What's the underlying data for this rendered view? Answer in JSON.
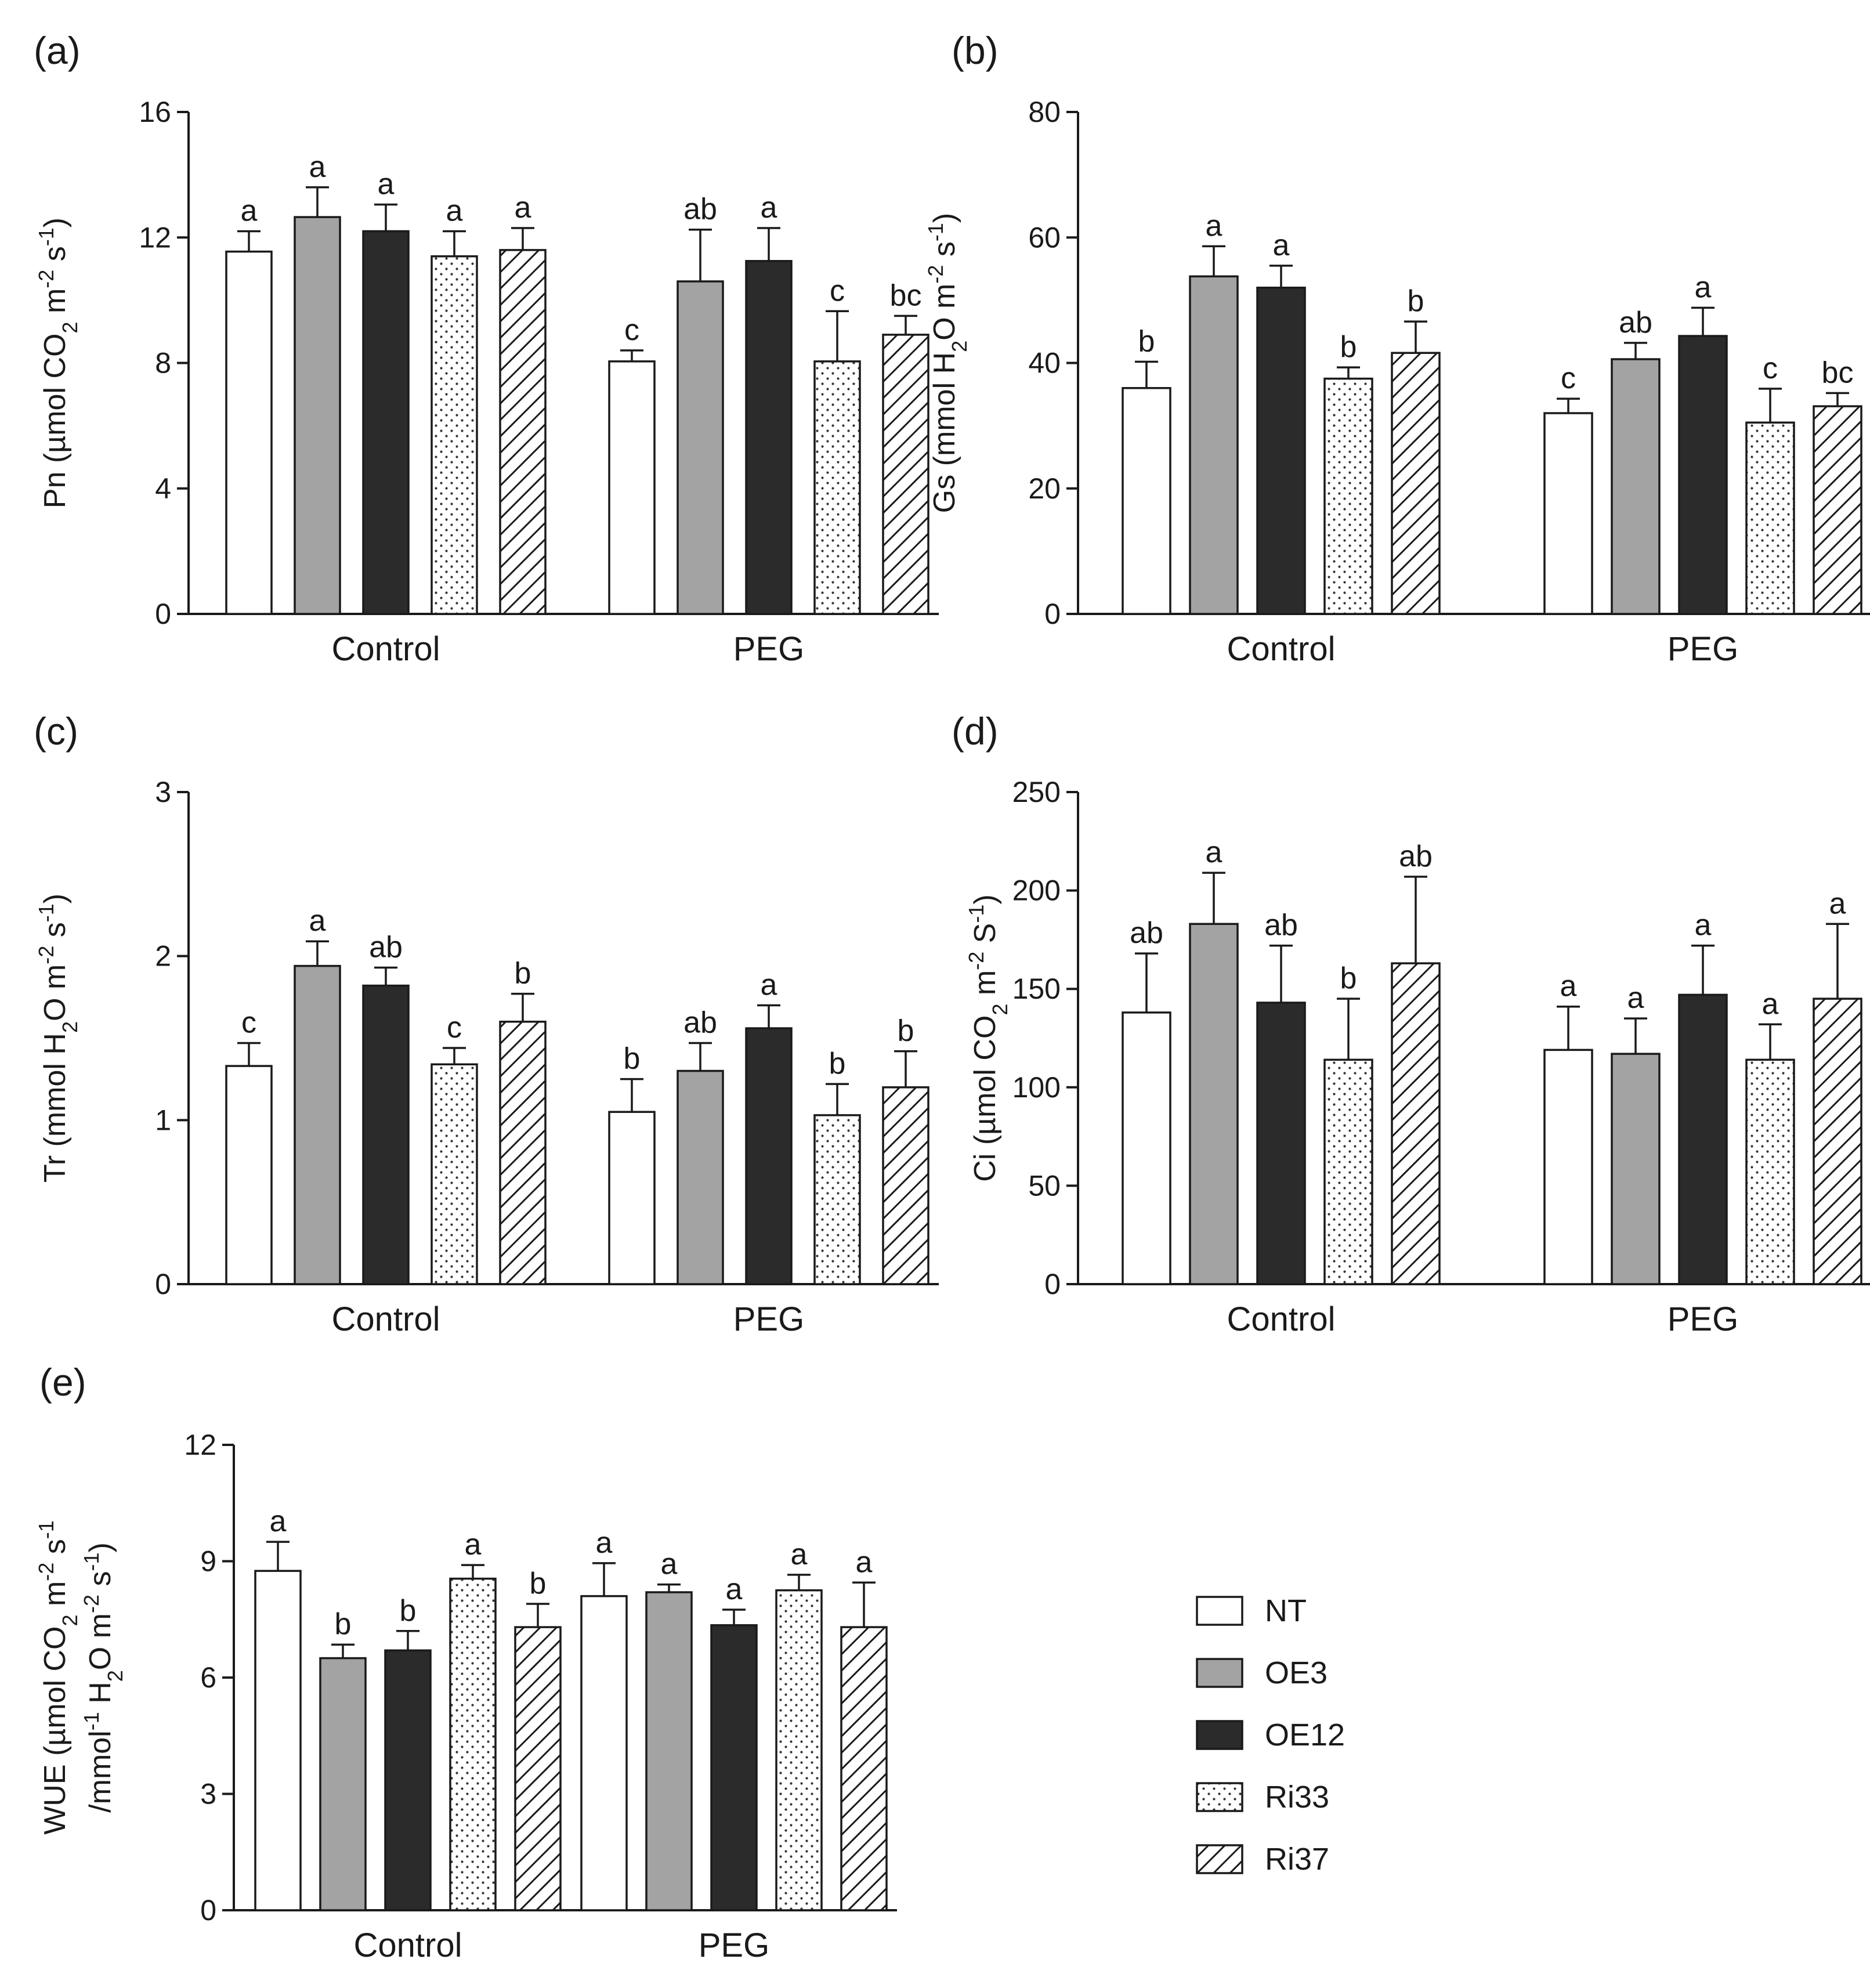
{
  "chart_data": [
    {
      "panel": "(a)",
      "type": "bar",
      "categories": [
        "Control",
        "PEG"
      ],
      "series": [
        {
          "name": "NT",
          "values": [
            11.55,
            8.05
          ],
          "errors": [
            0.65,
            0.35
          ],
          "letters": [
            "a",
            "c"
          ]
        },
        {
          "name": "OE3",
          "values": [
            12.65,
            10.6
          ],
          "errors": [
            0.95,
            1.65
          ],
          "letters": [
            "a",
            "ab"
          ]
        },
        {
          "name": "OE12",
          "values": [
            12.2,
            11.25
          ],
          "errors": [
            0.85,
            1.05
          ],
          "letters": [
            "a",
            "a"
          ]
        },
        {
          "name": "Ri33",
          "values": [
            11.4,
            8.05
          ],
          "errors": [
            0.8,
            1.6
          ],
          "letters": [
            "a",
            "c"
          ]
        },
        {
          "name": "Ri37",
          "values": [
            11.6,
            8.9
          ],
          "errors": [
            0.7,
            0.6
          ],
          "letters": [
            "a",
            "bc"
          ]
        }
      ],
      "ylim": [
        0,
        16
      ],
      "yticks": [
        0,
        4,
        8,
        12,
        16
      ],
      "ytick_labels": [
        "0",
        "4",
        "8",
        "12",
        "16"
      ],
      "ylabel": {
        "main": "Pn (µmol CO",
        "sub": "2",
        "rest": " m",
        "sup1": "-2",
        "mid": " s",
        "sup2": "-1",
        "end": ")"
      }
    },
    {
      "panel": "(b)",
      "type": "bar",
      "categories": [
        "Control",
        "PEG"
      ],
      "series": [
        {
          "name": "NT",
          "values": [
            36,
            32
          ],
          "errors": [
            4.2,
            2.3
          ],
          "letters": [
            "b",
            "c"
          ]
        },
        {
          "name": "OE3",
          "values": [
            53.8,
            40.6
          ],
          "errors": [
            4.8,
            2.6
          ],
          "letters": [
            "a",
            "ab"
          ]
        },
        {
          "name": "OE12",
          "values": [
            52,
            44.3
          ],
          "errors": [
            3.5,
            4.5
          ],
          "letters": [
            "a",
            "a"
          ]
        },
        {
          "name": "Ri33",
          "values": [
            37.5,
            30.5
          ],
          "errors": [
            1.8,
            5.4
          ],
          "letters": [
            "b",
            "c"
          ]
        },
        {
          "name": "Ri37",
          "values": [
            41.6,
            33.1
          ],
          "errors": [
            5,
            2.1
          ],
          "letters": [
            "b",
            "bc"
          ]
        }
      ],
      "ylim": [
        0,
        80
      ],
      "yticks": [
        0,
        20,
        40,
        60,
        80
      ],
      "ytick_labels": [
        "0",
        "20",
        "40",
        "60",
        "80"
      ],
      "ylabel": {
        "main": "Gs (mmol H",
        "sub": "2",
        "rest": "O m",
        "sup1": "-2",
        "mid": " s",
        "sup2": "-1",
        "end": ")"
      }
    },
    {
      "panel": "(c)",
      "type": "bar",
      "categories": [
        "Control",
        "PEG"
      ],
      "series": [
        {
          "name": "NT",
          "values": [
            1.33,
            1.05
          ],
          "errors": [
            0.14,
            0.2
          ],
          "letters": [
            "c",
            "b"
          ]
        },
        {
          "name": "OE3",
          "values": [
            1.94,
            1.3
          ],
          "errors": [
            0.15,
            0.17
          ],
          "letters": [
            "a",
            "ab"
          ]
        },
        {
          "name": "OE12",
          "values": [
            1.82,
            1.56
          ],
          "errors": [
            0.11,
            0.14
          ],
          "letters": [
            "ab",
            "a"
          ]
        },
        {
          "name": "Ri33",
          "values": [
            1.34,
            1.03
          ],
          "errors": [
            0.1,
            0.19
          ],
          "letters": [
            "c",
            "b"
          ]
        },
        {
          "name": "Ri37",
          "values": [
            1.6,
            1.2
          ],
          "errors": [
            0.17,
            0.22
          ],
          "letters": [
            "b",
            "b"
          ]
        }
      ],
      "ylim": [
        0,
        3
      ],
      "yticks": [
        0,
        1,
        2,
        3
      ],
      "ytick_labels": [
        "0",
        "1",
        "2",
        "3"
      ],
      "ylabel": {
        "main": "Tr (mmol H",
        "sub": "2",
        "rest": "O m",
        "sup1": "-2",
        "mid": " s",
        "sup2": "-1",
        "end": ")"
      }
    },
    {
      "panel": "(d)",
      "type": "bar",
      "categories": [
        "Control",
        "PEG"
      ],
      "series": [
        {
          "name": "NT",
          "values": [
            138,
            119
          ],
          "errors": [
            30,
            22
          ],
          "letters": [
            "ab",
            "a"
          ]
        },
        {
          "name": "OE3",
          "values": [
            183,
            117
          ],
          "errors": [
            26,
            18
          ],
          "letters": [
            "a",
            "a"
          ]
        },
        {
          "name": "OE12",
          "values": [
            143,
            147
          ],
          "errors": [
            29,
            25
          ],
          "letters": [
            "ab",
            "a"
          ]
        },
        {
          "name": "Ri33",
          "values": [
            114,
            114
          ],
          "errors": [
            31,
            18
          ],
          "letters": [
            "b",
            "a"
          ]
        },
        {
          "name": "Ri37",
          "values": [
            163,
            145
          ],
          "errors": [
            44,
            38
          ],
          "letters": [
            "ab",
            "a"
          ]
        }
      ],
      "ylim": [
        0,
        250
      ],
      "yticks": [
        0,
        50,
        100,
        150,
        200,
        250
      ],
      "ytick_labels": [
        "0",
        "50",
        "100",
        "150",
        "200",
        "250"
      ],
      "ylabel": {
        "main": "Ci (µmol CO",
        "sub": "2",
        "rest": " m",
        "sup1": "-2",
        "mid": " S",
        "sup2": "-1",
        "end": ")"
      }
    },
    {
      "panel": "(e)",
      "type": "bar",
      "categories": [
        "Control",
        "PEG"
      ],
      "series": [
        {
          "name": "NT",
          "values": [
            8.75,
            8.1
          ],
          "errors": [
            0.75,
            0.85
          ],
          "letters": [
            "a",
            "a"
          ]
        },
        {
          "name": "OE3",
          "values": [
            6.5,
            8.2
          ],
          "errors": [
            0.35,
            0.2
          ],
          "letters": [
            "b",
            "a"
          ]
        },
        {
          "name": "OE12",
          "values": [
            6.7,
            7.35
          ],
          "errors": [
            0.5,
            0.4
          ],
          "letters": [
            "b",
            "a"
          ]
        },
        {
          "name": "Ri33",
          "values": [
            8.55,
            8.25
          ],
          "errors": [
            0.35,
            0.4
          ],
          "letters": [
            "a",
            "a"
          ]
        },
        {
          "name": "Ri37",
          "values": [
            7.3,
            7.3
          ],
          "errors": [
            0.6,
            1.15
          ],
          "letters": [
            "b",
            "a"
          ]
        }
      ],
      "ylim": [
        0,
        12
      ],
      "yticks": [
        0,
        3,
        6,
        9,
        12
      ],
      "ytick_labels": [
        "0",
        "3",
        "6",
        "9",
        "12"
      ],
      "ylabel_line1": {
        "main": "WUE (µmol CO",
        "sub": "2",
        "rest": " m",
        "sup1": "-2",
        "mid": " s",
        "sup2": "-1",
        "end": ""
      },
      "ylabel_line2": {
        "main": "/mmol",
        "sup0": "-1",
        "mid0": " H",
        "sub": "2",
        "rest": "O m",
        "sup1": "-2",
        "mid": " s",
        "sup2": "-1",
        "end": ")"
      }
    }
  ],
  "legend": [
    {
      "name": "NT",
      "style": "white"
    },
    {
      "name": "OE3",
      "style": "gray"
    },
    {
      "name": "OE12",
      "style": "black"
    },
    {
      "name": "Ri33",
      "style": "dotted"
    },
    {
      "name": "Ri37",
      "style": "hatched"
    }
  ],
  "colors": {
    "gray": "#a3a3a3",
    "black": "#2b2b2b",
    "axis": "#1a1a1a",
    "white": "#ffffff"
  }
}
